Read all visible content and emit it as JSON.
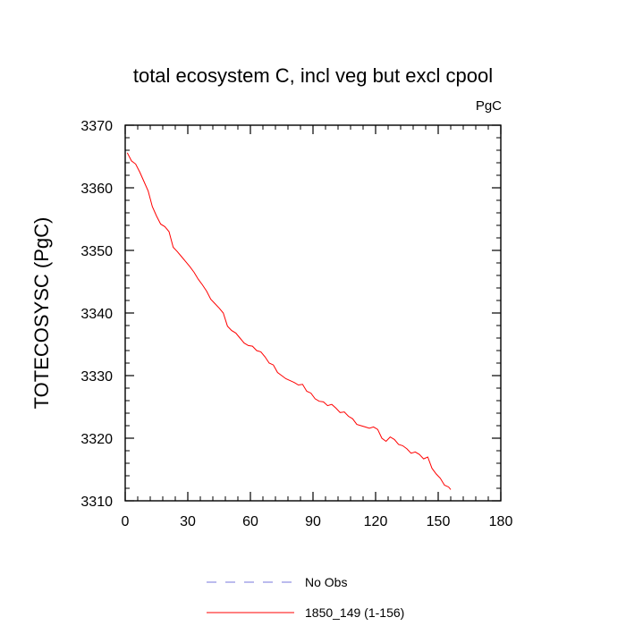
{
  "chart_data": {
    "type": "line",
    "title": "total ecosystem C, incl veg but excl cpool",
    "units": "PgC",
    "xlabel": "",
    "ylabel": "TOTECOSYSC  (PgC)",
    "xlim": [
      0,
      180
    ],
    "ylim": [
      3310,
      3370
    ],
    "xticks": [
      0,
      30,
      60,
      90,
      120,
      150,
      180
    ],
    "yticks": [
      3310,
      3320,
      3330,
      3340,
      3350,
      3360,
      3370
    ],
    "grid": false,
    "legend_placement": "bottom",
    "series": [
      {
        "name": "No Obs",
        "color": "#7777dd",
        "style": "dashed",
        "x": [],
        "y": []
      },
      {
        "name": "1850_149 (1-156)",
        "color": "#ff0000",
        "style": "solid",
        "x": [
          1,
          3,
          5,
          7,
          9,
          11,
          13,
          15,
          17,
          19,
          21,
          23,
          25,
          27,
          29,
          31,
          33,
          35,
          37,
          39,
          41,
          43,
          45,
          47,
          49,
          51,
          53,
          55,
          57,
          59,
          61,
          63,
          65,
          67,
          69,
          71,
          73,
          75,
          77,
          79,
          81,
          83,
          85,
          87,
          89,
          91,
          93,
          95,
          97,
          99,
          101,
          103,
          105,
          107,
          109,
          111,
          113,
          115,
          117,
          119,
          121,
          123,
          125,
          127,
          129,
          131,
          133,
          135,
          137,
          139,
          141,
          143,
          145,
          147,
          149,
          151,
          153,
          155,
          156
        ],
        "y": [
          3365.6,
          3364.3,
          3363.8,
          3362.5,
          3361.0,
          3359.5,
          3357.0,
          3355.5,
          3354.2,
          3353.8,
          3353.0,
          3350.5,
          3349.8,
          3349.0,
          3348.2,
          3347.4,
          3346.5,
          3345.4,
          3344.5,
          3343.5,
          3342.2,
          3341.5,
          3340.8,
          3340.0,
          3337.9,
          3337.2,
          3336.8,
          3336.0,
          3335.2,
          3334.8,
          3334.7,
          3334.0,
          3333.8,
          3333.0,
          3332.0,
          3331.7,
          3330.5,
          3330.0,
          3329.5,
          3329.2,
          3328.9,
          3328.5,
          3328.6,
          3327.5,
          3327.2,
          3326.3,
          3325.9,
          3325.8,
          3325.2,
          3325.4,
          3324.8,
          3324.1,
          3324.2,
          3323.5,
          3323.1,
          3322.2,
          3322.0,
          3321.8,
          3321.6,
          3321.8,
          3321.4,
          3320.0,
          3319.5,
          3320.2,
          3319.8,
          3319.0,
          3318.8,
          3318.3,
          3317.6,
          3317.8,
          3317.4,
          3316.7,
          3317.0,
          3315.2,
          3314.3,
          3313.6,
          3312.5,
          3312.2,
          3311.8
        ]
      }
    ]
  }
}
